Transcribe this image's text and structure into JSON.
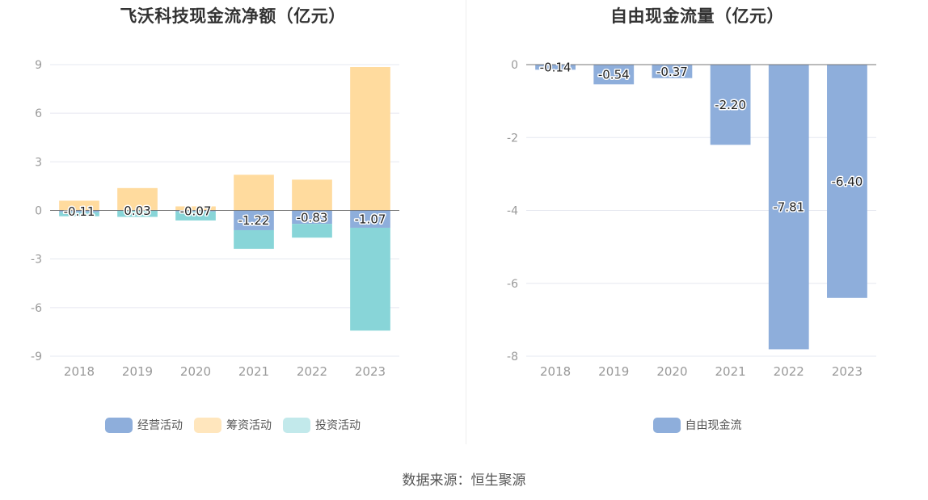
{
  "source": "数据来源：恒生聚源",
  "chart_data": [
    {
      "type": "bar",
      "stacked": true,
      "title": "飞沃科技现金流净额（亿元）",
      "categories": [
        "2018",
        "2019",
        "2020",
        "2021",
        "2022",
        "2023"
      ],
      "ylim": [
        -9,
        9
      ],
      "yticks": [
        9,
        6,
        3,
        0,
        -3,
        -6,
        -9
      ],
      "grid": true,
      "legend_position": "bottom",
      "labeled_series": "经营活动",
      "series": [
        {
          "name": "经营活动",
          "color": "#8eaedb",
          "values": [
            -0.11,
            0.03,
            -0.07,
            -1.22,
            -0.83,
            -1.07
          ],
          "labels": [
            "-0.11",
            "0.03",
            "-0.07",
            "-1.22",
            "-0.83",
            "-1.07"
          ]
        },
        {
          "name": "筹资活动",
          "color": "#ffdb9e",
          "values": [
            0.6,
            1.35,
            0.25,
            2.2,
            1.9,
            8.85
          ]
        },
        {
          "name": "投资活动",
          "color": "#88d5d8",
          "values": [
            -0.25,
            -0.4,
            -0.55,
            -1.15,
            -0.85,
            -6.35
          ]
        }
      ]
    },
    {
      "type": "bar",
      "title": "自由现金流量（亿元）",
      "categories": [
        "2018",
        "2019",
        "2020",
        "2021",
        "2022",
        "2023"
      ],
      "ylim": [
        -8,
        0
      ],
      "yticks": [
        0,
        -2,
        -4,
        -6,
        -8
      ],
      "grid": true,
      "legend_position": "bottom",
      "series": [
        {
          "name": "自由现金流",
          "color": "#8eaedb",
          "values": [
            -0.14,
            -0.54,
            -0.37,
            -2.2,
            -7.81,
            -6.4
          ],
          "labels": [
            "-0.14",
            "-0.54",
            "-0.37",
            "-2.20",
            "-7.81",
            "-6.40"
          ]
        }
      ]
    }
  ]
}
